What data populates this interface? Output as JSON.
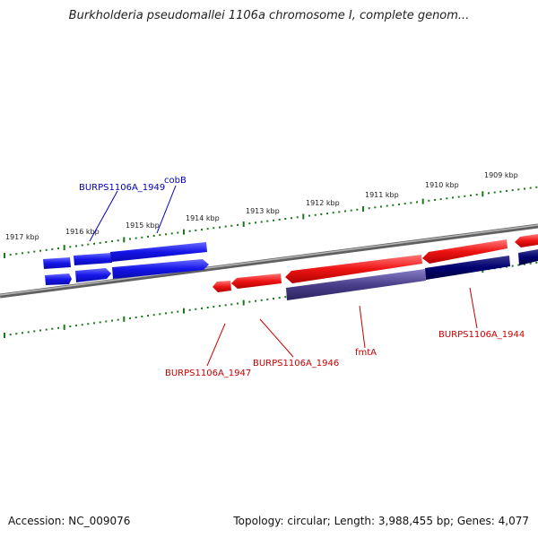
{
  "title": "Burkholderia pseudomallei 1106a chromosome I, complete genom...",
  "footer": {
    "accession": "Accession: NC_009076",
    "topology": "Topology: circular; Length: 3,988,455 bp; Genes: 4,077"
  },
  "ruler_labels": [
    "1917 kbp",
    "1916 kbp",
    "1915 kbp",
    "1914 kbp",
    "1913 kbp",
    "1912 kbp",
    "1911 kbp",
    "1910 kbp",
    "1909 kbp"
  ],
  "gene_labels": {
    "burps1949": "BURPS1106A_1949",
    "cobB": "cobB",
    "burps1947": "BURPS1106A_1947",
    "burps1946": "BURPS1106A_1946",
    "fmtA": "fmtA",
    "burps1944": "BURPS1106A_1944"
  },
  "colors": {
    "forward_gene": "#1010e0",
    "reverse_gene": "#e01010",
    "selected_forward": "#000066",
    "selected_reverse": "#4a3f8a",
    "backbone": "#808080",
    "ruler_ticks": "#1a7a1a",
    "label_fwd": "#0000bb",
    "label_rev": "#cc0000"
  }
}
